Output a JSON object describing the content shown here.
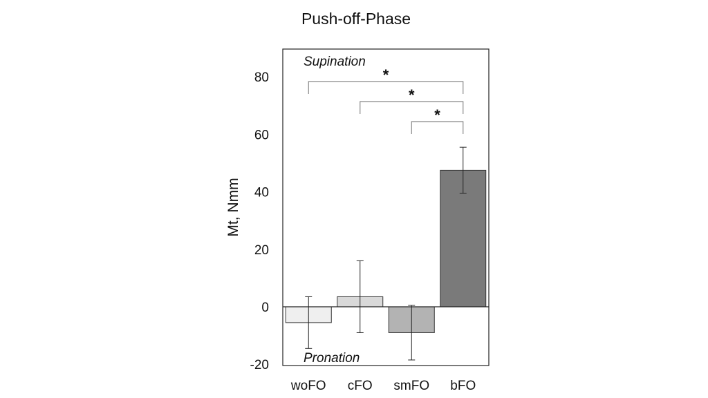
{
  "chart_data": {
    "type": "bar",
    "title": "Push-off-Phase",
    "xlabel": "",
    "ylabel": "Mt, Nmm",
    "categories": [
      "woFO",
      "cFO",
      "smFO",
      "bFO"
    ],
    "values": [
      -5.5,
      3.5,
      -9,
      47.5
    ],
    "error": [
      9,
      12.5,
      9.5,
      8
    ],
    "colors": [
      "#efefef",
      "#d9d9d9",
      "#b3b3b3",
      "#7a7a7a"
    ],
    "ylim": [
      -20,
      90
    ],
    "yticks": [
      -20,
      0,
      20,
      40,
      60,
      80
    ],
    "grid": false,
    "annotations": {
      "top": "Supination",
      "bottom": "Pronation"
    },
    "significance": [
      {
        "from": "woFO",
        "to": "bFO",
        "label": "*"
      },
      {
        "from": "cFO",
        "to": "bFO",
        "label": "*"
      },
      {
        "from": "smFO",
        "to": "bFO",
        "label": "*"
      }
    ]
  }
}
